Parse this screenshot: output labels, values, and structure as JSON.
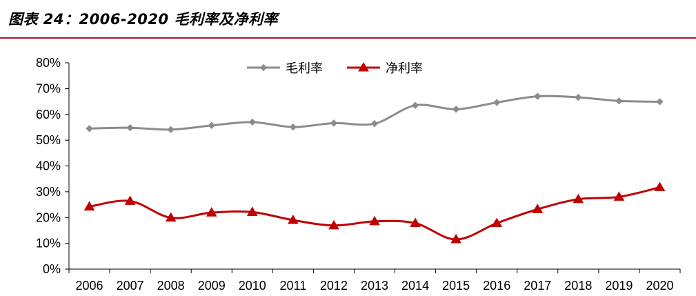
{
  "title": "图表 24：2006-2020 毛利率及净利率",
  "colors": {
    "title_rule": "#b4141e",
    "gross": "#8c8c8c",
    "net": "#c00000"
  },
  "chart_data": {
    "type": "line",
    "categories": [
      "2006",
      "2007",
      "2008",
      "2009",
      "2010",
      "2011",
      "2012",
      "2013",
      "2014",
      "2015",
      "2016",
      "2017",
      "2018",
      "2019",
      "2020"
    ],
    "series": [
      {
        "name": "毛利率",
        "marker": "diamond",
        "color": "#8c8c8c",
        "values": [
          54.5,
          54.8,
          54.1,
          55.7,
          57.0,
          55.1,
          56.6,
          56.4,
          63.5,
          62.0,
          64.6,
          67.0,
          66.6,
          65.2,
          64.9
        ]
      },
      {
        "name": "净利率",
        "marker": "triangle",
        "color": "#c00000",
        "values": [
          24.2,
          26.4,
          19.9,
          21.9,
          22.1,
          19.0,
          16.9,
          18.5,
          17.8,
          11.5,
          17.8,
          23.2,
          27.1,
          28.0,
          31.7
        ]
      }
    ],
    "yticks": [
      "0%",
      "10%",
      "20%",
      "30%",
      "40%",
      "50%",
      "60%",
      "70%",
      "80%"
    ],
    "ylim": [
      0,
      80
    ],
    "grid": false,
    "legend": "top-center"
  }
}
